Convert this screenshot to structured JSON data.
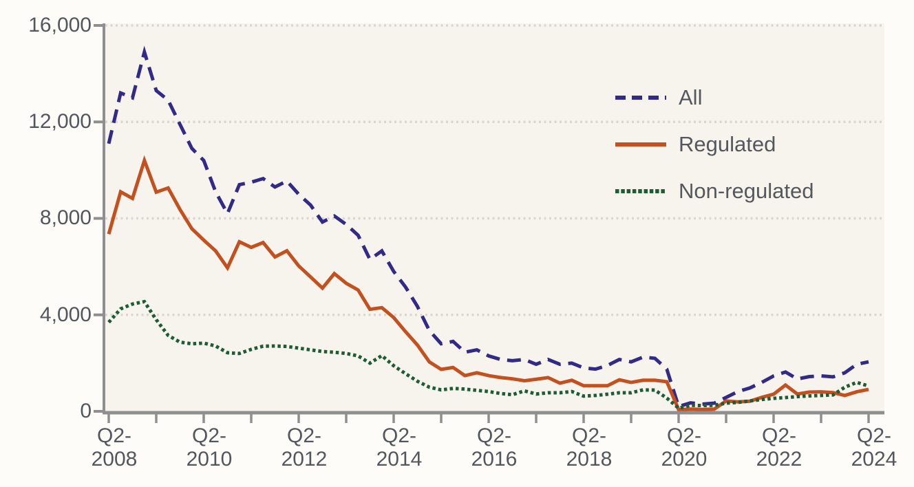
{
  "chart_data": {
    "type": "line",
    "title": "",
    "interval": "quarterly",
    "x_start": "Q2-2008",
    "x_end": "Q2-2024",
    "grid": "horizontal-dotted",
    "legend_position": "top-right-inside",
    "plot_bg": "#f7f4ed",
    "page_bg": "#fdfcf8",
    "grid_color": "#d9d7d0",
    "axis_color": "#8f8f8f",
    "label_color": "#53575d",
    "y_axis": {
      "range": [
        0,
        16000
      ],
      "tick_values": [
        16000,
        12000,
        8000,
        4000,
        0
      ],
      "tick_labels": [
        "16,000",
        "12,000",
        "8,000",
        "4,000",
        "0"
      ]
    },
    "x_axis": {
      "start_year": 2008,
      "end_year": 2024,
      "minor_ticks": "yearly",
      "tick_labels": [
        {
          "line1": "Q2-",
          "line2": "2008"
        },
        {
          "line1": "Q2-",
          "line2": "2010"
        },
        {
          "line1": "Q2-",
          "line2": "2012"
        },
        {
          "line1": "Q2-",
          "line2": "2014"
        },
        {
          "line1": "Q2-",
          "line2": "2016"
        },
        {
          "line1": "Q2-",
          "line2": "2018"
        },
        {
          "line1": "Q2-",
          "line2": "2020"
        },
        {
          "line1": "Q2-",
          "line2": "2022"
        },
        {
          "line1": "Q2-",
          "line2": "2024"
        }
      ]
    },
    "series": [
      {
        "name": "All",
        "color": "#322a86",
        "style": "dashed",
        "dash": "20 11",
        "legend_dash": "15 9",
        "values": [
          11100,
          13200,
          13000,
          14900,
          13300,
          12900,
          11900,
          10900,
          10400,
          9100,
          8200,
          9400,
          9500,
          9650,
          9300,
          9550,
          9000,
          8550,
          7850,
          8100,
          7750,
          7300,
          6300,
          6650,
          5800,
          5150,
          4350,
          3350,
          2800,
          2900,
          2450,
          2550,
          2300,
          2150,
          2100,
          2150,
          1950,
          2150,
          1950,
          2000,
          1800,
          1750,
          1900,
          2150,
          2050,
          2250,
          2200,
          1750,
          200,
          350,
          300,
          340,
          580,
          820,
          970,
          1200,
          1470,
          1630,
          1340,
          1440,
          1470,
          1430,
          1600,
          1950,
          2050
        ]
      },
      {
        "name": "Regulated",
        "color": "#c2511f",
        "style": "solid",
        "dash": "none",
        "legend_dash": "none",
        "values": [
          7350,
          9100,
          8830,
          10400,
          9090,
          9260,
          8370,
          7570,
          7100,
          6650,
          5950,
          7030,
          6800,
          7000,
          6400,
          6660,
          6030,
          5570,
          5110,
          5710,
          5310,
          5030,
          4230,
          4300,
          3890,
          3300,
          2750,
          2050,
          1740,
          1820,
          1480,
          1600,
          1480,
          1400,
          1350,
          1270,
          1330,
          1400,
          1170,
          1290,
          1060,
          1060,
          1060,
          1310,
          1200,
          1290,
          1290,
          1230,
          70,
          90,
          80,
          90,
          430,
          390,
          420,
          580,
          710,
          1090,
          720,
          800,
          810,
          780,
          660,
          810,
          910
        ]
      },
      {
        "name": "Non-regulated",
        "color": "#1e5c36",
        "style": "dotted",
        "dash": "4.5 4",
        "legend_dash": "5.5 2.8",
        "values": [
          3690,
          4250,
          4450,
          4550,
          3800,
          3150,
          2870,
          2800,
          2830,
          2710,
          2430,
          2400,
          2570,
          2700,
          2710,
          2690,
          2620,
          2550,
          2480,
          2450,
          2400,
          2300,
          2000,
          2310,
          1890,
          1560,
          1250,
          1000,
          890,
          950,
          920,
          870,
          820,
          740,
          690,
          850,
          720,
          770,
          770,
          820,
          630,
          660,
          710,
          770,
          770,
          890,
          880,
          550,
          130,
          250,
          240,
          250,
          340,
          370,
          430,
          490,
          540,
          570,
          610,
          640,
          660,
          680,
          1000,
          1200,
          1050
        ]
      }
    ]
  }
}
